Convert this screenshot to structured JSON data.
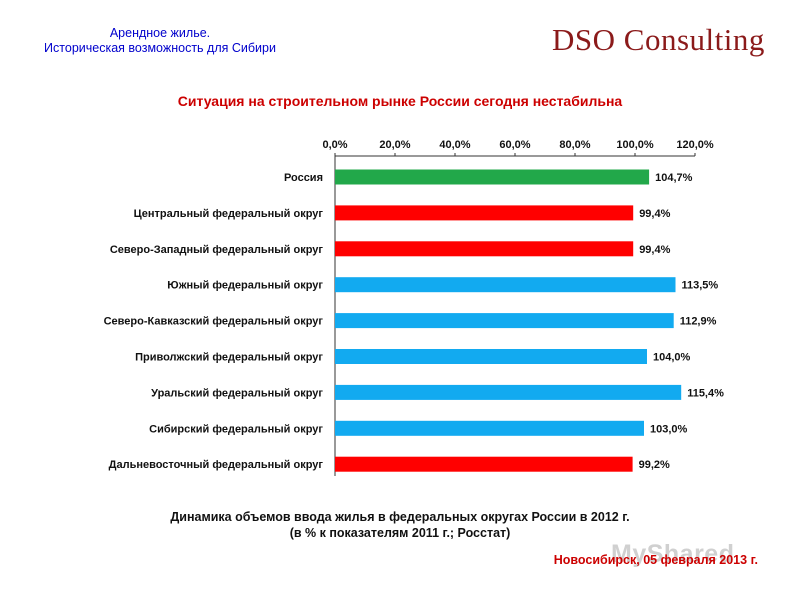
{
  "header": {
    "line1": "Арендное жилье.",
    "line2": "Историческая возможность для Сибири",
    "logo": "DSO Consulting"
  },
  "slide_title": "Ситуация на строительном рынке России сегодня нестабильна",
  "caption": {
    "line1": "Динамика объемов ввода жилья в федеральных округах России в 2012 г.",
    "line2": "(в % к показателям 2011 г.; Росстат)"
  },
  "footer": "Новосибирск, 05 февраля 2013 г.",
  "watermark": "MyShared",
  "colors": {
    "russia": "#22a84a",
    "below100": "#ff0000",
    "above100": "#12aaf0"
  },
  "chart_data": {
    "type": "bar",
    "orientation": "horizontal",
    "axis_position": "top",
    "xlim": [
      0,
      120
    ],
    "x_ticks": [
      "0,0%",
      "20,0%",
      "40,0%",
      "60,0%",
      "80,0%",
      "100,0%",
      "120,0%"
    ],
    "grid": false,
    "categories": [
      "Россия",
      "Центральный федеральный округ",
      "Северо-Западный федеральный округ",
      "Южный федеральный округ",
      "Северо-Кавказский федеральный округ",
      "Приволжский федеральный округ",
      "Уральский федеральный округ",
      "Сибирский федеральный округ",
      "Дальневосточный федеральный округ"
    ],
    "values": [
      104.7,
      99.4,
      99.4,
      113.5,
      112.9,
      104.0,
      115.4,
      103.0,
      99.2
    ],
    "value_labels": [
      "104,7%",
      "99,4%",
      "99,4%",
      "113,5%",
      "112,9%",
      "104,0%",
      "115,4%",
      "103,0%",
      "99,2%"
    ],
    "bar_colors": [
      "#22a84a",
      "#ff0000",
      "#ff0000",
      "#12aaf0",
      "#12aaf0",
      "#12aaf0",
      "#12aaf0",
      "#12aaf0",
      "#ff0000"
    ]
  }
}
